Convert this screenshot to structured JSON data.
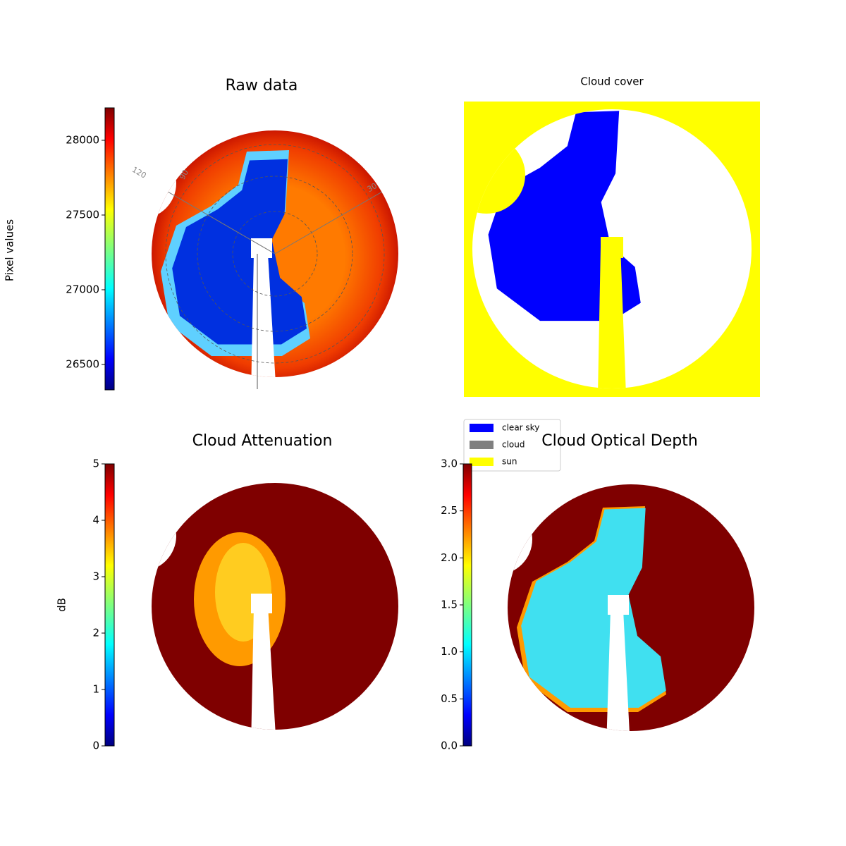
{
  "chart_data": [
    {
      "type": "image",
      "title": "Raw data",
      "colorbar_label": "Pixel values",
      "colormap": "jet",
      "clim": [
        26330,
        28217
      ],
      "ticks": [
        26500,
        27000,
        27500,
        28000
      ],
      "polar_labels": [
        "120",
        "90",
        "30"
      ]
    },
    {
      "type": "image",
      "title": "Cloud cover",
      "series": [
        {
          "name": "clear sky",
          "color": "#0000ff"
        },
        {
          "name": "cloud",
          "color": "#808080"
        },
        {
          "name": "sun",
          "color": "#ffff00"
        }
      ]
    },
    {
      "type": "image",
      "title": "Cloud Attenuation",
      "colorbar_label": "dB",
      "colormap": "jet",
      "clim": [
        0,
        5
      ],
      "ticks": [
        0,
        1,
        2,
        3,
        4,
        5
      ]
    },
    {
      "type": "image",
      "title": "Cloud Optical Depth",
      "colormap": "jet",
      "clim": [
        0,
        3
      ],
      "ticks": [
        {
          "value": 0,
          "label": "0.0"
        },
        {
          "value": 0.5,
          "label": "0.5"
        },
        {
          "value": 1,
          "label": "1.0"
        },
        {
          "value": 1.5,
          "label": "1.5"
        },
        {
          "value": 2,
          "label": "2.0"
        },
        {
          "value": 2.5,
          "label": "2.5"
        },
        {
          "value": 3,
          "label": "3.0"
        }
      ]
    }
  ]
}
